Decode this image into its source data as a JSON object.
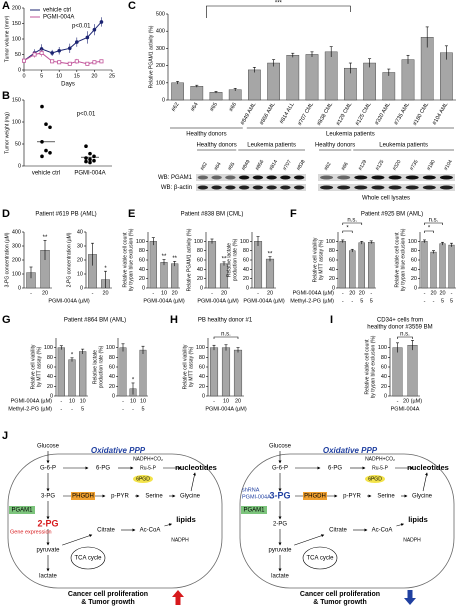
{
  "chart_data": [
    {
      "type": "line",
      "panel": "A",
      "ylabel": "Tumor volume (mm³)",
      "xlabel": "Days",
      "x": [
        0,
        3,
        5,
        8,
        10,
        13,
        15,
        18,
        20,
        22
      ],
      "series": [
        {
          "name": "vehicle ctrl",
          "color": "#1c2472",
          "values": [
            30,
            55,
            68,
            55,
            62,
            70,
            90,
            105,
            130,
            155
          ],
          "errors": [
            5,
            12,
            15,
            10,
            12,
            15,
            15,
            20,
            18,
            15
          ]
        },
        {
          "name": "PGMI-004A",
          "color": "#c2559b",
          "values": [
            30,
            50,
            55,
            28,
            25,
            20,
            28,
            20,
            25,
            28
          ],
          "errors": [
            5,
            10,
            12,
            6,
            5,
            5,
            8,
            5,
            6,
            6
          ]
        }
      ],
      "xlim": [
        0,
        25
      ],
      "xticks": [
        0,
        5,
        10,
        15,
        20,
        25
      ],
      "ylim": [
        0,
        200
      ],
      "yticks": [
        0,
        50,
        100,
        150,
        200
      ],
      "annotation": "p<0.01"
    },
    {
      "type": "strip",
      "panel": "B",
      "ylabel": "Tumor weight (mg)",
      "categories": [
        "vehicle ctrl",
        "PGMI-004A"
      ],
      "points": [
        [
          135,
          95,
          88,
          55,
          35,
          30,
          22
        ],
        [
          45,
          28,
          22,
          18,
          15,
          12,
          10,
          8
        ]
      ],
      "means": [
        55,
        20
      ],
      "color": "#000000",
      "ylim": [
        0,
        150
      ],
      "yticks": [
        0,
        50,
        100,
        150
      ],
      "annotation": "p<0.01"
    },
    {
      "type": "bar",
      "panel": "C",
      "ylabel": "Relative PGAM1 activity (%)",
      "rotate_labels": true,
      "color": "#a6a6a6",
      "categories": [
        "#62",
        "#64",
        "#65",
        "#66",
        "#849 AML",
        "#856 AML",
        "#814 ALL",
        "#707 CML",
        "#838 CML",
        "#129 CML",
        "#125 CML",
        "#320 AML",
        "#735 AML",
        "#180 CML",
        "#104 AML"
      ],
      "values": [
        100,
        80,
        45,
        60,
        175,
        215,
        260,
        265,
        280,
        185,
        215,
        160,
        235,
        365,
        275
      ],
      "errors": [
        8,
        6,
        5,
        8,
        15,
        20,
        12,
        15,
        30,
        30,
        25,
        20,
        25,
        60,
        40
      ],
      "groups": [
        {
          "label": "Healthy donors",
          "from": 0,
          "to": 3
        },
        {
          "label": "Leukemia patients",
          "from": 4,
          "to": 14
        }
      ],
      "annotation": "***",
      "ylim": [
        0,
        500
      ],
      "yticks": [
        0,
        100,
        200,
        300,
        400,
        500
      ]
    },
    {
      "type": "bar",
      "panel": "D",
      "title": "Patient #619 PB (AML)",
      "ylabel": "3-PG concentration (µM)",
      "xlabel": "PGMI-004A (µM)",
      "color": "#a6a6a6",
      "categories": [
        "-",
        "20"
      ],
      "values": [
        110,
        270
      ],
      "errors": [
        40,
        70
      ],
      "sig": [
        null,
        "**"
      ],
      "ylim": [
        0,
        400
      ],
      "yticks": [
        0,
        100,
        200,
        300,
        400
      ]
    },
    {
      "type": "bar",
      "ylabel": "2-PG concentration (µM)",
      "color": "#a6a6a6",
      "categories": [
        "-",
        "20"
      ],
      "values": [
        24,
        6
      ],
      "errors": [
        8,
        6
      ],
      "sig": [
        null,
        "*"
      ],
      "ylim": [
        0,
        40
      ],
      "yticks": [
        0,
        10,
        20,
        30,
        40
      ]
    },
    {
      "type": "bar",
      "panel": "E",
      "title": "Patient #838 BM (CML)",
      "ylabel": [
        "Relative viable cell count",
        "by trypan blue exclusion (%)"
      ],
      "xlabel": "PGMI-004A (µM)",
      "color": "#a6a6a6",
      "categories": [
        "-",
        "10",
        "20"
      ],
      "values": [
        100,
        55,
        52
      ],
      "errors": [
        8,
        6,
        5
      ],
      "sig": [
        null,
        "**",
        "**"
      ],
      "ylim": [
        0,
        120
      ],
      "yticks": [
        0,
        20,
        40,
        60,
        80,
        100
      ]
    },
    {
      "type": "bar",
      "ylabel": "Relative PGAM1 activity (%)",
      "xlabel": "PGMI-004A (µM)",
      "color": "#a6a6a6",
      "categories": [
        "-",
        "20"
      ],
      "values": [
        100,
        52
      ],
      "errors": [
        5,
        4
      ],
      "sig": [
        null,
        "**"
      ],
      "ylim": [
        0,
        120
      ],
      "yticks": [
        0,
        20,
        40,
        60,
        80,
        100
      ]
    },
    {
      "type": "bar",
      "ylabel": [
        "Relative lactate",
        "production rate (%)"
      ],
      "xlabel": "PGMI-004A (µM)",
      "color": "#a6a6a6",
      "categories": [
        "-",
        "20"
      ],
      "values": [
        100,
        62
      ],
      "errors": [
        10,
        5
      ],
      "sig": [
        null,
        "**"
      ],
      "ylim": [
        0,
        120
      ],
      "yticks": [
        0,
        20,
        40,
        60,
        80,
        100
      ]
    },
    {
      "type": "bar",
      "panel": "F",
      "title": "Patient #925 BM (AML)",
      "ylabel": [
        "Relative cell viability",
        "by MTT assay (%)"
      ],
      "xlabel": "PGMI-004A (µM)",
      "color": "#a6a6a6",
      "categories": [
        "-",
        "20",
        "20",
        "-"
      ],
      "extra_rows": [
        {
          "name": "Methyl-2-PG (µM)",
          "labels": [
            "-",
            "-",
            "5",
            "5"
          ]
        }
      ],
      "values": [
        100,
        80,
        97,
        98
      ],
      "errors": [
        3,
        3,
        3,
        3
      ],
      "brackets": [
        {
          "text": "*",
          "from": 0,
          "to": 1
        },
        {
          "text": "n.s.",
          "from": 0,
          "to": 2
        }
      ],
      "ylim": [
        0,
        120
      ],
      "yticks": [
        0,
        20,
        40,
        60,
        80,
        100
      ]
    },
    {
      "type": "bar",
      "ylabel": [
        "Relative viable cell count",
        "by trypan blue exclusion (%)"
      ],
      "color": "#a6a6a6",
      "categories": [
        "-",
        "20",
        "20",
        "-"
      ],
      "extra_rows": [
        {
          "labels": [
            "-",
            "-",
            "5",
            "5"
          ]
        }
      ],
      "values": [
        100,
        77,
        95,
        92
      ],
      "errors": [
        3,
        3,
        3,
        4
      ],
      "brackets": [
        {
          "text": "*",
          "from": 0,
          "to": 1
        },
        {
          "text": "n.s.",
          "from": 0,
          "to": 2
        }
      ],
      "ylim": [
        0,
        120
      ],
      "yticks": [
        0,
        20,
        40,
        60,
        80,
        100
      ]
    },
    {
      "type": "bar",
      "panel": "G",
      "title": "Patient #864 BM (AML)",
      "ylabel": [
        "Relative cell viability",
        "by MTT assay (%)"
      ],
      "xlabel": "PGMI-004A (µM)",
      "color": "#a6a6a6",
      "categories": [
        "-",
        "10",
        "10"
      ],
      "extra_rows": [
        {
          "name": "Methyl-2-PG (µM)",
          "labels": [
            "-",
            "-",
            "5"
          ]
        }
      ],
      "values": [
        100,
        75,
        92
      ],
      "errors": [
        4,
        4,
        5
      ],
      "sig": [
        null,
        "*",
        null
      ],
      "ylim": [
        0,
        120
      ],
      "yticks": [
        0,
        20,
        40,
        60,
        80,
        100
      ]
    },
    {
      "type": "bar",
      "ylabel": [
        "Relative lactate",
        "production rate (%)"
      ],
      "color": "#a6a6a6",
      "categories": [
        "-",
        "10",
        "10"
      ],
      "extra_rows": [
        {
          "labels": [
            "-",
            "-",
            "5"
          ]
        }
      ],
      "values": [
        100,
        15,
        95
      ],
      "errors": [
        8,
        12,
        8
      ],
      "sig": [
        null,
        "*",
        null
      ],
      "ylim": [
        0,
        120
      ],
      "yticks": [
        0,
        20,
        40,
        60,
        80,
        100
      ]
    },
    {
      "type": "bar",
      "panel": "H",
      "title": "PB healthy donor #1",
      "ylabel": [
        "Relative cell viability",
        "by MTT assay (%)"
      ],
      "xlabel": "PGMI-004A (µM)",
      "color": "#a6a6a6",
      "categories": [
        "-",
        "10",
        "20"
      ],
      "values": [
        100,
        100,
        95
      ],
      "errors": [
        5,
        6,
        5
      ],
      "brackets": [
        {
          "text": "n.s.",
          "from": 0,
          "to": 2
        }
      ],
      "ylim": [
        0,
        120
      ],
      "yticks": [
        0,
        20,
        40,
        60,
        80,
        100
      ]
    },
    {
      "type": "bar",
      "panel": "I",
      "title": [
        "CD34+ cells from",
        "healthy donor #3559 BM"
      ],
      "ylabel": [
        "Relative viable cell count",
        "by trypan blue exclusion (%)"
      ],
      "xlabel": "PGMI-004A",
      "color": "#a6a6a6",
      "categories": [
        "-",
        "20 (µM)"
      ],
      "values": [
        100,
        105
      ],
      "errors": [
        10,
        10
      ],
      "brackets": [
        {
          "text": "n.s.",
          "from": 0,
          "to": 1
        }
      ],
      "ylim": [
        0,
        120
      ],
      "yticks": [
        0,
        20,
        40,
        60,
        80,
        100
      ]
    }
  ],
  "blots": {
    "rows": [
      "WB: PGAM1",
      "WB: β-actin"
    ],
    "caption": "Whole cell lysates",
    "panels": [
      {
        "groups": [
          {
            "label": "Healthy donors",
            "lanes": [
              "#62",
              "#64",
              "#65"
            ]
          },
          {
            "label": "Leukemia patients",
            "lanes": [
              "#849",
              "#856",
              "#814",
              "#707",
              "#838"
            ]
          }
        ]
      },
      {
        "groups": [
          {
            "label": "Healthy donors",
            "lanes": [
              "#62",
              "#66"
            ]
          },
          {
            "label": "Leukemia patients",
            "lanes": [
              "#129",
              "#125",
              "#320",
              "#735",
              "#180",
              "#104"
            ]
          }
        ]
      }
    ]
  },
  "diagram": {
    "panel": "J",
    "cells": [
      {
        "title": "Oxidative PPP",
        "labels": [
          "Glucose",
          "G-6-P",
          "6-PG",
          "Ru-5-P",
          "NADPH+CO₂",
          "6PGD",
          "nucleotides",
          "3-PG",
          "PHGDH",
          "p-PYR",
          "Serine",
          "Glycine",
          "lipids",
          "2-PG",
          "PGAM1",
          "Citrate",
          "Ac-CoA",
          "NADPH",
          "TCA cycle",
          "pyruvate",
          "lactate"
        ],
        "note": "Gene expression",
        "footer": [
          "Cancer cell proliferation",
          "& Tumor growth"
        ]
      },
      {
        "title": "Oxidative PPP",
        "labels": [
          "Glucose",
          "G-6-P",
          "6-PG",
          "Ru-5-P",
          "NADPH+CO₂",
          "6PGD",
          "nucleotides",
          "3-PG",
          "PHGDH",
          "p-PYR",
          "Serine",
          "Glycine",
          "lipids",
          "2-PG",
          "PGAM1",
          "Citrate",
          "Ac-CoA",
          "NADPH",
          "TCA cycle",
          "pyruvate",
          "lactate"
        ],
        "inhibitor": [
          "shRNA",
          "PGMI-004A"
        ],
        "footer": [
          "Cancer cell proliferation",
          "& Tumor growth"
        ]
      }
    ]
  }
}
